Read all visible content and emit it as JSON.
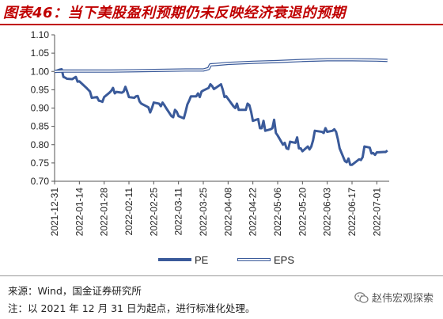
{
  "title": "图表46：当下美股盈利预期仍未反映经济衰退的预期",
  "source": "来源：Wind，国金证券研究所",
  "note": "注：以 2021 年 12 月 31 日为起点，进行标准化处理。",
  "watermark": "赵伟宏观探索",
  "chart_data": {
    "type": "line",
    "ylim": [
      0.7,
      1.1
    ],
    "yticks": [
      "0.70",
      "0.75",
      "0.80",
      "0.85",
      "0.90",
      "0.95",
      "1.00",
      "1.05",
      "1.10"
    ],
    "xlim": [
      "2021-12-31",
      "2022-07-08"
    ],
    "xticks": [
      "2021-12-31",
      "2022-01-14",
      "2022-01-28",
      "2022-02-11",
      "2022-02-25",
      "2022-03-11",
      "2022-03-25",
      "2022-04-08",
      "2022-04-22",
      "2022-05-06",
      "2022-05-20",
      "2022-06-03",
      "2022-06-17",
      "2022-07-01"
    ],
    "legend_position": "bottom",
    "series": [
      {
        "name": "PE",
        "color": "#3a5a9a",
        "style": "solid",
        "points": [
          [
            "2021-12-31",
            1.0
          ],
          [
            "2022-01-03",
            1.005
          ],
          [
            "2022-01-04",
            1.006
          ],
          [
            "2022-01-05",
            0.985
          ],
          [
            "2022-01-06",
            0.983
          ],
          [
            "2022-01-07",
            0.98
          ],
          [
            "2022-01-10",
            0.979
          ],
          [
            "2022-01-11",
            0.982
          ],
          [
            "2022-01-12",
            0.985
          ],
          [
            "2022-01-13",
            0.972
          ],
          [
            "2022-01-14",
            0.973
          ],
          [
            "2022-01-18",
            0.955
          ],
          [
            "2022-01-19",
            0.95
          ],
          [
            "2022-01-20",
            0.945
          ],
          [
            "2022-01-21",
            0.928
          ],
          [
            "2022-01-24",
            0.93
          ],
          [
            "2022-01-25",
            0.92
          ],
          [
            "2022-01-26",
            0.919
          ],
          [
            "2022-01-27",
            0.917
          ],
          [
            "2022-01-28",
            0.93
          ],
          [
            "2022-01-31",
            0.942
          ],
          [
            "2022-02-01",
            0.947
          ],
          [
            "2022-02-02",
            0.955
          ],
          [
            "2022-02-03",
            0.94
          ],
          [
            "2022-02-04",
            0.944
          ],
          [
            "2022-02-07",
            0.942
          ],
          [
            "2022-02-08",
            0.945
          ],
          [
            "2022-02-09",
            0.958
          ],
          [
            "2022-02-10",
            0.945
          ],
          [
            "2022-02-11",
            0.93
          ],
          [
            "2022-02-14",
            0.928
          ],
          [
            "2022-02-15",
            0.932
          ],
          [
            "2022-02-16",
            0.933
          ],
          [
            "2022-02-17",
            0.918
          ],
          [
            "2022-02-18",
            0.912
          ],
          [
            "2022-02-22",
            0.902
          ],
          [
            "2022-02-23",
            0.888
          ],
          [
            "2022-02-24",
            0.9
          ],
          [
            "2022-02-25",
            0.915
          ],
          [
            "2022-02-28",
            0.912
          ],
          [
            "2022-03-01",
            0.905
          ],
          [
            "2022-03-02",
            0.915
          ],
          [
            "2022-03-03",
            0.908
          ],
          [
            "2022-03-04",
            0.9
          ],
          [
            "2022-03-07",
            0.878
          ],
          [
            "2022-03-08",
            0.875
          ],
          [
            "2022-03-09",
            0.895
          ],
          [
            "2022-03-10",
            0.89
          ],
          [
            "2022-03-11",
            0.878
          ],
          [
            "2022-03-14",
            0.872
          ],
          [
            "2022-03-15",
            0.89
          ],
          [
            "2022-03-16",
            0.91
          ],
          [
            "2022-03-17",
            0.92
          ],
          [
            "2022-03-18",
            0.932
          ],
          [
            "2022-03-21",
            0.932
          ],
          [
            "2022-03-22",
            0.94
          ],
          [
            "2022-03-23",
            0.93
          ],
          [
            "2022-03-24",
            0.945
          ],
          [
            "2022-03-25",
            0.948
          ],
          [
            "2022-03-28",
            0.955
          ],
          [
            "2022-03-29",
            0.965
          ],
          [
            "2022-03-30",
            0.96
          ],
          [
            "2022-03-31",
            0.952
          ],
          [
            "2022-04-01",
            0.955
          ],
          [
            "2022-04-04",
            0.965
          ],
          [
            "2022-04-05",
            0.95
          ],
          [
            "2022-04-06",
            0.93
          ],
          [
            "2022-04-07",
            0.932
          ],
          [
            "2022-04-08",
            0.925
          ],
          [
            "2022-04-11",
            0.905
          ],
          [
            "2022-04-12",
            0.9
          ],
          [
            "2022-04-13",
            0.912
          ],
          [
            "2022-04-14",
            0.895
          ],
          [
            "2022-04-18",
            0.895
          ],
          [
            "2022-04-19",
            0.912
          ],
          [
            "2022-04-20",
            0.908
          ],
          [
            "2022-04-21",
            0.89
          ],
          [
            "2022-04-22",
            0.865
          ],
          [
            "2022-04-25",
            0.87
          ],
          [
            "2022-04-26",
            0.845
          ],
          [
            "2022-04-27",
            0.845
          ],
          [
            "2022-04-28",
            0.865
          ],
          [
            "2022-04-29",
            0.838
          ],
          [
            "2022-05-02",
            0.842
          ],
          [
            "2022-05-03",
            0.845
          ],
          [
            "2022-05-04",
            0.868
          ],
          [
            "2022-05-05",
            0.832
          ],
          [
            "2022-05-06",
            0.825
          ],
          [
            "2022-05-09",
            0.8
          ],
          [
            "2022-05-10",
            0.805
          ],
          [
            "2022-05-11",
            0.79
          ],
          [
            "2022-05-12",
            0.788
          ],
          [
            "2022-05-13",
            0.808
          ],
          [
            "2022-05-16",
            0.805
          ],
          [
            "2022-05-17",
            0.82
          ],
          [
            "2022-05-18",
            0.79
          ],
          [
            "2022-05-19",
            0.79
          ],
          [
            "2022-05-20",
            0.782
          ],
          [
            "2022-05-23",
            0.795
          ],
          [
            "2022-05-24",
            0.787
          ],
          [
            "2022-05-25",
            0.795
          ],
          [
            "2022-05-26",
            0.812
          ],
          [
            "2022-05-27",
            0.838
          ],
          [
            "2022-05-31",
            0.835
          ],
          [
            "2022-06-01",
            0.832
          ],
          [
            "2022-06-02",
            0.845
          ],
          [
            "2022-06-03",
            0.835
          ],
          [
            "2022-06-06",
            0.838
          ],
          [
            "2022-06-07",
            0.842
          ],
          [
            "2022-06-08",
            0.835
          ],
          [
            "2022-06-09",
            0.815
          ],
          [
            "2022-06-10",
            0.79
          ],
          [
            "2022-06-13",
            0.755
          ],
          [
            "2022-06-14",
            0.752
          ],
          [
            "2022-06-15",
            0.762
          ],
          [
            "2022-06-16",
            0.745
          ],
          [
            "2022-06-17",
            0.745
          ],
          [
            "2022-06-21",
            0.76
          ],
          [
            "2022-06-22",
            0.758
          ],
          [
            "2022-06-23",
            0.766
          ],
          [
            "2022-06-24",
            0.795
          ],
          [
            "2022-06-27",
            0.792
          ],
          [
            "2022-06-28",
            0.776
          ],
          [
            "2022-06-29",
            0.777
          ],
          [
            "2022-06-30",
            0.772
          ],
          [
            "2022-07-01",
            0.779
          ],
          [
            "2022-07-05",
            0.78
          ],
          [
            "2022-07-06",
            0.78
          ],
          [
            "2022-07-07",
            0.784
          ]
        ]
      },
      {
        "name": "EPS",
        "color": "#3a5a9a",
        "style": "double",
        "points": [
          [
            "2021-12-31",
            1.0
          ],
          [
            "2022-01-05",
            1.001
          ],
          [
            "2022-01-20",
            1.001
          ],
          [
            "2022-02-01",
            1.001
          ],
          [
            "2022-02-15",
            1.002
          ],
          [
            "2022-03-01",
            1.003
          ],
          [
            "2022-03-15",
            1.004
          ],
          [
            "2022-03-25",
            1.004
          ],
          [
            "2022-03-28",
            1.008
          ],
          [
            "2022-03-29",
            1.018
          ],
          [
            "2022-04-01",
            1.019
          ],
          [
            "2022-04-08",
            1.022
          ],
          [
            "2022-04-22",
            1.025
          ],
          [
            "2022-05-06",
            1.027
          ],
          [
            "2022-05-20",
            1.03
          ],
          [
            "2022-06-03",
            1.032
          ],
          [
            "2022-06-17",
            1.032
          ],
          [
            "2022-07-01",
            1.031
          ],
          [
            "2022-07-07",
            1.03
          ]
        ]
      }
    ]
  }
}
